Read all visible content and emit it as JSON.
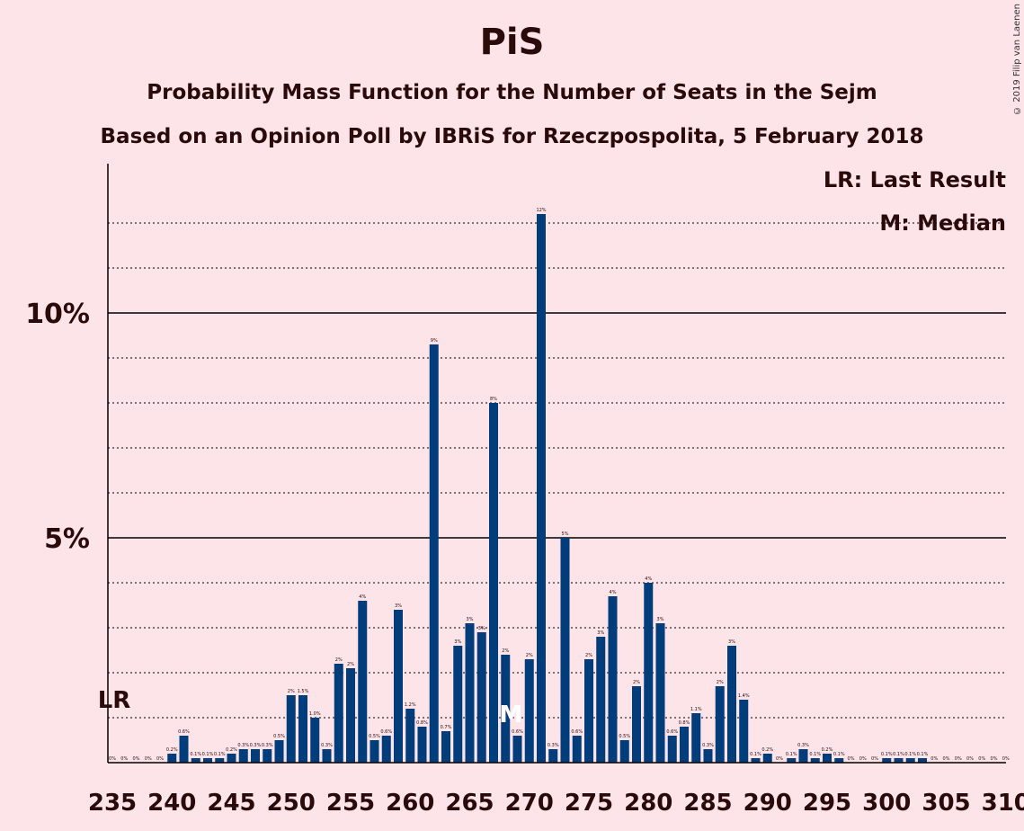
{
  "copyright": "© 2019 Filip van Laenen",
  "legend": {
    "lr": "LR: Last Result",
    "median": "M: Median"
  },
  "chart_data": {
    "type": "bar",
    "title": "PiS",
    "subtitle1": "Probability Mass Function for the Number of Seats in the Sejm",
    "subtitle2": "Based on an Opinion Poll by IBRiS for Rzeczpospolita, 5 February 2018",
    "xlabel": "",
    "ylabel": "",
    "xlim": [
      235,
      310
    ],
    "ylim": [
      0,
      13.2
    ],
    "y_ticks": [
      {
        "value": 5,
        "label": "5%"
      },
      {
        "value": 10,
        "label": "10%"
      }
    ],
    "x_ticks": [
      235,
      240,
      245,
      250,
      255,
      260,
      265,
      270,
      275,
      280,
      285,
      290,
      295,
      300,
      305,
      310
    ],
    "bar_color": "#003d7a",
    "last_result": {
      "seat": 235,
      "label": "LR"
    },
    "median": {
      "seat": 268,
      "label": "M"
    },
    "x": [
      235,
      236,
      237,
      238,
      239,
      240,
      241,
      242,
      243,
      244,
      245,
      246,
      247,
      248,
      249,
      250,
      251,
      252,
      253,
      254,
      255,
      256,
      257,
      258,
      259,
      260,
      261,
      262,
      263,
      264,
      265,
      266,
      267,
      268,
      269,
      270,
      271,
      272,
      273,
      274,
      275,
      276,
      277,
      278,
      279,
      280,
      281,
      282,
      283,
      284,
      285,
      286,
      287,
      288,
      289,
      290,
      291,
      292,
      293,
      294,
      295,
      296,
      297,
      298,
      299,
      300,
      301,
      302,
      303,
      304,
      305,
      306,
      307,
      308,
      309,
      310
    ],
    "values": [
      0,
      0,
      0,
      0,
      0,
      0.2,
      0.6,
      0.1,
      0.1,
      0.1,
      0.2,
      0.3,
      0.3,
      0.3,
      0.5,
      1.5,
      1.5,
      1.0,
      0.3,
      2.2,
      2.1,
      3.6,
      0.5,
      0.6,
      3.4,
      1.2,
      0.8,
      9.3,
      0.7,
      2.6,
      3.1,
      2.9,
      8.0,
      2.4,
      0.6,
      2.3,
      12.2,
      0.3,
      5.0,
      0.6,
      2.3,
      2.8,
      3.7,
      0.5,
      1.7,
      4.0,
      3.1,
      0.6,
      0.8,
      1.1,
      0.3,
      1.7,
      2.6,
      1.4,
      0.1,
      0.2,
      0,
      0.1,
      0.3,
      0.1,
      0.2,
      0.1,
      0,
      0,
      0,
      0.1,
      0.1,
      0.1,
      0.1,
      0,
      0,
      0,
      0,
      0,
      0,
      0
    ],
    "value_labels": [
      "0%",
      "0%",
      "0%",
      "0%",
      "0%",
      "0.2%",
      "0.6%",
      "0.1%",
      "0.1%",
      "0.1%",
      "0.2%",
      "0.3%",
      "0.3%",
      "0.3%",
      "0.5%",
      "2%",
      "1.5%",
      "1.0%",
      "0.3%",
      "2%",
      "2%",
      "4%",
      "0.5%",
      "0.6%",
      "3%",
      "1.2%",
      "0.8%",
      "9%",
      "0.7%",
      "3%",
      "3%",
      "3%",
      "8%",
      "2%",
      "0.6%",
      "2%",
      "12%",
      "0.3%",
      "5%",
      "0.6%",
      "2%",
      "3%",
      "4%",
      "0.5%",
      "2%",
      "4%",
      "3%",
      "0.6%",
      "0.8%",
      "1.1%",
      "0.3%",
      "2%",
      "3%",
      "1.4%",
      "0.1%",
      "0.2%",
      "0%",
      "0.1%",
      "0.3%",
      "0.1%",
      "0.2%",
      "0.1%",
      "0%",
      "0%",
      "0%",
      "0.1%",
      "0.1%",
      "0.1%",
      "0.1%",
      "0%",
      "0%",
      "0%",
      "0%",
      "0%",
      "0%",
      "0%"
    ]
  }
}
